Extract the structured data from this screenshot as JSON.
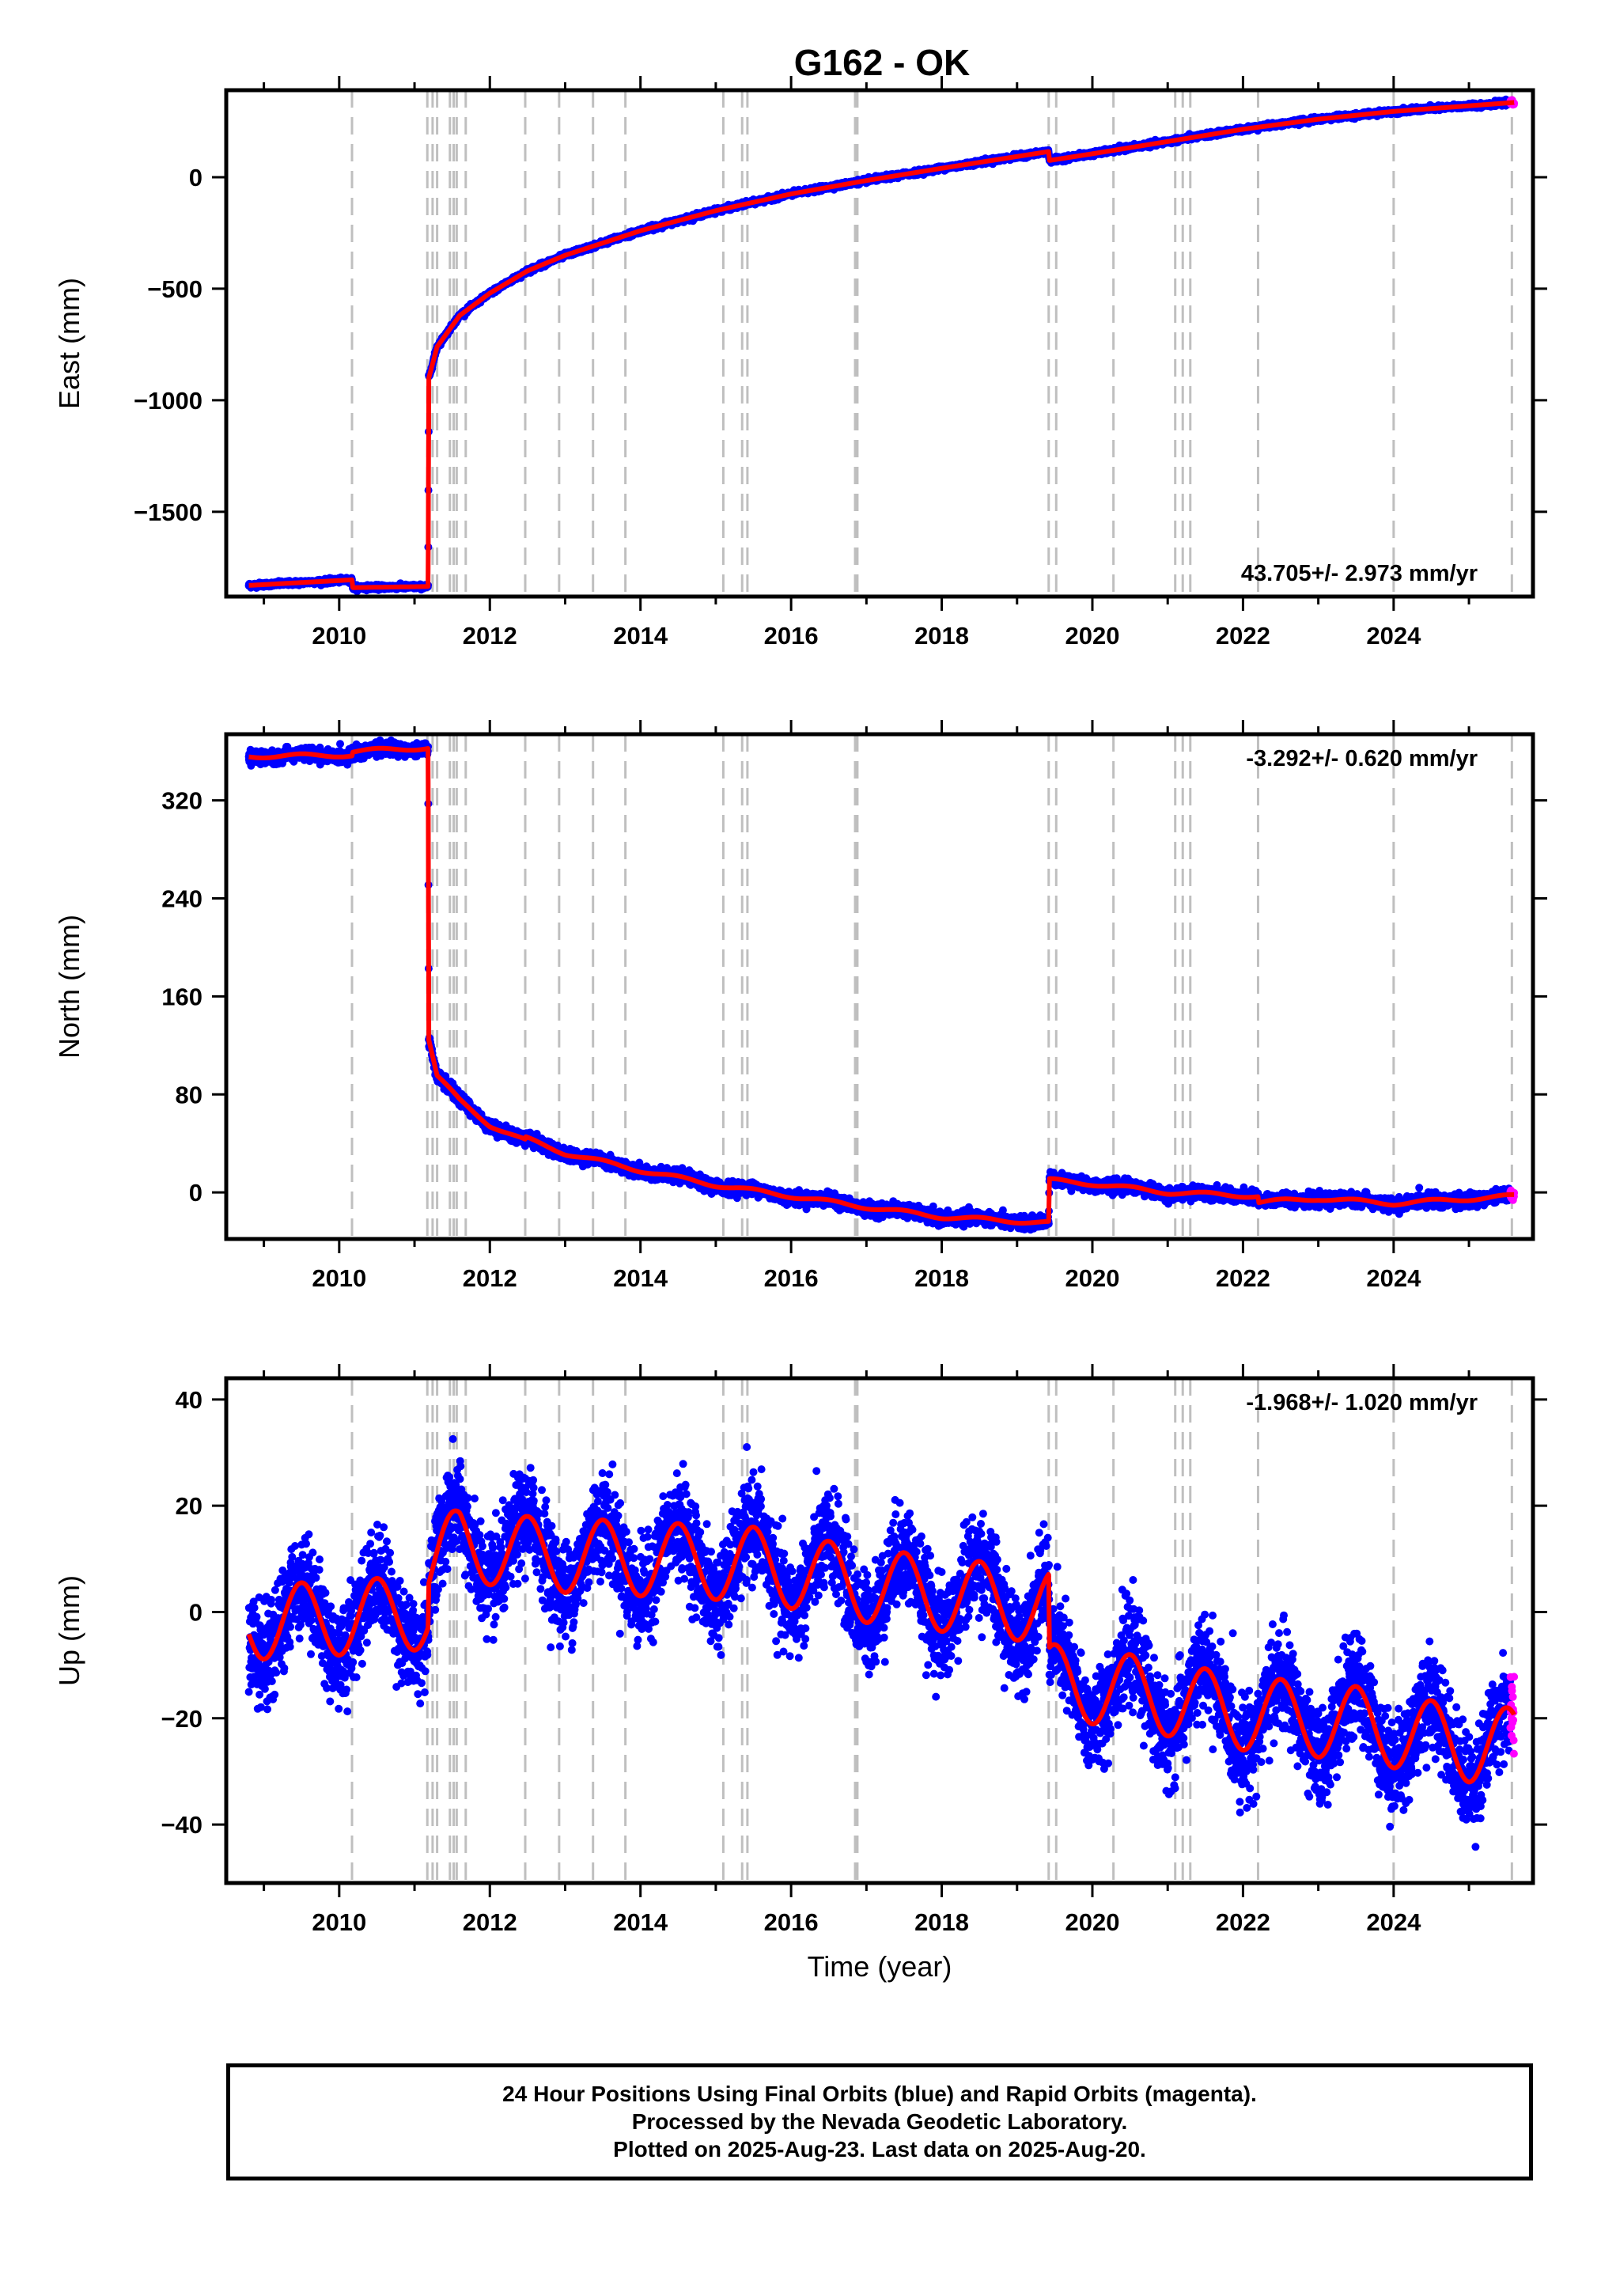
{
  "title": "G162 - OK",
  "colors": {
    "final_orbits": "#0000ff",
    "rapid_orbits": "#ff00ff",
    "model_fit": "#ff0000",
    "event_lines": "#bfbfbf",
    "frame": "#000000"
  },
  "chart_data": [
    {
      "type": "scatter",
      "name": "east",
      "ylabel": "East (mm)",
      "xlabel": "",
      "xlim": [
        2008.5,
        2025.85
      ],
      "ylim": [
        -1880,
        390
      ],
      "xticks": [
        2010,
        2012,
        2014,
        2016,
        2018,
        2020,
        2022,
        2024
      ],
      "yticks": [
        -1500,
        -1000,
        -500,
        0
      ],
      "ytick_labels": [
        "−1500",
        "−1000",
        "−500",
        "0"
      ],
      "rate_label": "43.705+/- 2.973 mm/yr",
      "rate_position": "bottom-right",
      "series_anchor_points": {
        "x": [
          2008.8,
          2010.17,
          2010.18,
          2011.18,
          2011.19,
          2011.3,
          2011.6,
          2012.0,
          2012.5,
          2013.0,
          2014.0,
          2015.0,
          2016.0,
          2017.0,
          2018.0,
          2019.42,
          2019.43,
          2020.0,
          2021.0,
          2022.0,
          2023.0,
          2024.0,
          2025.6
        ],
        "y": [
          -1830,
          -1805,
          -1840,
          -1835,
          -900,
          -760,
          -620,
          -520,
          -420,
          -350,
          -240,
          -150,
          -75,
          -15,
          40,
          115,
          75,
          105,
          160,
          215,
          260,
          295,
          335
        ]
      },
      "event_lines_x": [
        2010.17,
        2011.17,
        2011.24,
        2011.3,
        2011.47,
        2011.52,
        2011.56,
        2011.68,
        2012.47,
        2012.92,
        2013.37,
        2013.8,
        2015.1,
        2015.35,
        2015.42,
        2016.85,
        2016.88,
        2019.42,
        2019.52,
        2020.28,
        2021.1,
        2021.2,
        2021.3,
        2022.2,
        2024.0,
        2025.57
      ],
      "noise_mm": 5,
      "seasonal_amplitude_mm": 0
    },
    {
      "type": "scatter",
      "name": "north",
      "ylabel": "North (mm)",
      "xlabel": "",
      "xlim": [
        2008.5,
        2025.85
      ],
      "ylim": [
        -38,
        374
      ],
      "xticks": [
        2010,
        2012,
        2014,
        2016,
        2018,
        2020,
        2022,
        2024
      ],
      "yticks": [
        0,
        80,
        160,
        240,
        320
      ],
      "ytick_labels": [
        "0",
        "80",
        "160",
        "240",
        "320"
      ],
      "rate_label": "-3.292+/- 0.620 mm/yr",
      "rate_position": "top-right",
      "series_anchor_points": {
        "x": [
          2008.8,
          2010.17,
          2010.18,
          2011.18,
          2011.19,
          2011.3,
          2011.6,
          2012.0,
          2012.47,
          2012.48,
          2013.0,
          2014.0,
          2015.0,
          2016.0,
          2017.0,
          2018.0,
          2019.42,
          2019.43,
          2020.0,
          2021.0,
          2022.2,
          2022.21,
          2023.0,
          2024.0,
          2025.6
        ],
        "y": [
          356,
          357,
          360,
          363,
          125,
          95,
          75,
          55,
          42,
          44,
          32,
          18,
          6,
          -3,
          -12,
          -20,
          -25,
          10,
          7,
          0,
          -3,
          -8,
          -5,
          -9,
          -3
        ]
      },
      "event_lines_x": [
        2010.17,
        2011.17,
        2011.24,
        2011.3,
        2011.47,
        2011.52,
        2011.56,
        2011.68,
        2012.47,
        2012.92,
        2013.37,
        2013.8,
        2015.1,
        2015.35,
        2015.42,
        2016.85,
        2016.88,
        2019.42,
        2019.52,
        2020.28,
        2021.1,
        2021.2,
        2021.3,
        2022.2,
        2024.0,
        2025.57
      ],
      "noise_mm": 2.5,
      "seasonal_amplitude_mm": 1.5
    },
    {
      "type": "scatter",
      "name": "up",
      "ylabel": "Up (mm)",
      "xlabel": "Time (year)",
      "xlim": [
        2008.5,
        2025.85
      ],
      "ylim": [
        -51,
        44
      ],
      "xticks": [
        2010,
        2012,
        2014,
        2016,
        2018,
        2020,
        2022,
        2024
      ],
      "yticks": [
        -40,
        -20,
        0,
        20,
        40
      ],
      "ytick_labels": [
        "−40",
        "−20",
        "0",
        "20",
        "40"
      ],
      "rate_label": "-1.968+/- 1.020 mm/yr",
      "rate_position": "top-right",
      "series_anchor_points": {
        "x": [
          2008.8,
          2010.17,
          2011.18,
          2011.19,
          2011.6,
          2012.5,
          2014.0,
          2015.5,
          2017.0,
          2019.42,
          2019.43,
          2020.5,
          2022.0,
          2023.5,
          2025.0,
          2025.6
        ],
        "y": [
          -2,
          -1,
          0,
          8,
          13,
          11,
          10,
          9,
          5,
          1,
          -13,
          -15,
          -19,
          -21,
          -25,
          -25
        ]
      },
      "event_lines_x": [
        2010.17,
        2011.17,
        2011.24,
        2011.3,
        2011.47,
        2011.52,
        2011.56,
        2011.68,
        2012.47,
        2012.92,
        2013.37,
        2013.8,
        2015.1,
        2015.35,
        2015.42,
        2016.85,
        2016.88,
        2019.42,
        2019.52,
        2020.28,
        2021.1,
        2021.2,
        2021.3,
        2022.2,
        2024.0,
        2025.57
      ],
      "noise_mm": 4.5,
      "seasonal_amplitude_mm": 7,
      "seasonal_peak_fraction": 0.5
    }
  ],
  "rapid_orbit_start": 2025.55,
  "footer": {
    "line1": "24 Hour Positions Using Final Orbits (blue) and Rapid Orbits (magenta).",
    "line2": "Processed by the Nevada Geodetic Laboratory.",
    "line3": "Plotted on 2025-Aug-23. Last data on 2025-Aug-20."
  }
}
